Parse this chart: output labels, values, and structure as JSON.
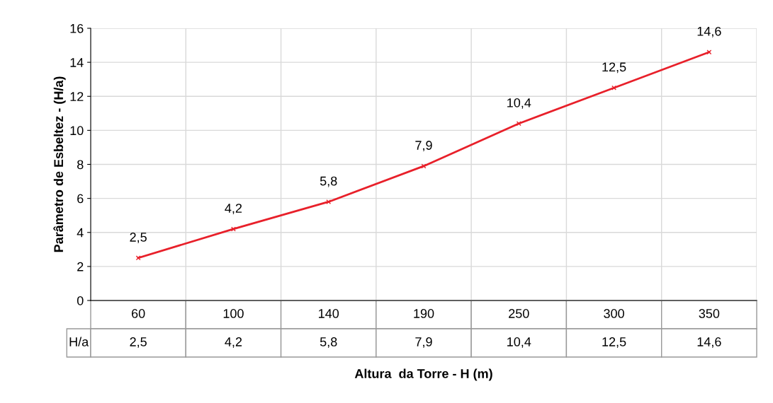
{
  "chart_data": {
    "type": "line",
    "xlabel": "Altura  da Torre - H (m)",
    "ylabel": "Parâmetro de Esbeltez - (H/a)",
    "categories": [
      "60",
      "100",
      "140",
      "190",
      "250",
      "300",
      "350"
    ],
    "series": [
      {
        "name": "H/a",
        "color": "#e8202a",
        "values": [
          2.5,
          4.2,
          5.8,
          7.9,
          10.4,
          12.5,
          14.6
        ],
        "value_labels": [
          "2,5",
          "4,2",
          "5,8",
          "7,9",
          "10,4",
          "12,5",
          "14,6"
        ]
      }
    ],
    "ylim": [
      0,
      16
    ],
    "yticks": [
      0,
      2,
      4,
      6,
      8,
      10,
      12,
      14,
      16
    ],
    "grid": true,
    "marker": "cross",
    "line_style": "solid",
    "legend": false
  }
}
